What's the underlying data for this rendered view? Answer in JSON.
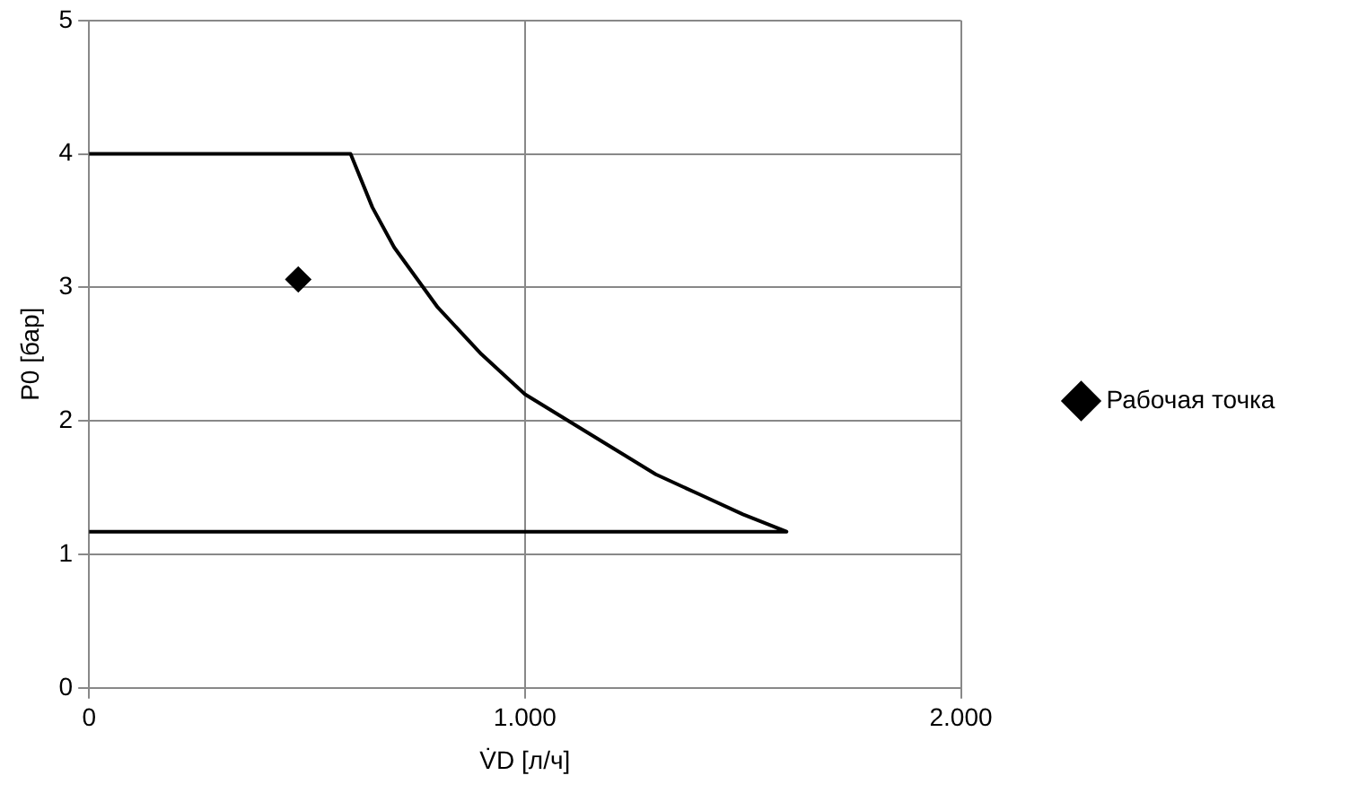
{
  "chart_data": {
    "type": "line",
    "xlabel": "V̇D [л/ч]",
    "ylabel": "P0 [бар]",
    "xlim": [
      0,
      2000
    ],
    "xticks": [
      0,
      {
        "value": 1000,
        "label": "1.000"
      },
      {
        "value": 2000,
        "label": "2.000"
      }
    ],
    "ylim": [
      0,
      5
    ],
    "yticks": [
      0,
      1,
      2,
      3,
      4,
      5
    ],
    "grid": true,
    "legend": "right",
    "series": [
      {
        "color": "#000000",
        "marker": "none",
        "x": [
          0,
          600,
          650,
          700,
          800,
          900,
          1000,
          1100,
          1200,
          1300,
          1400,
          1500,
          1600,
          0
        ],
        "values": [
          4,
          4,
          3.6,
          3.3,
          2.85,
          2.5,
          2.2,
          2,
          1.8,
          1.6,
          1.45,
          1.3,
          1.17,
          1.17
        ]
      },
      {
        "type": "scatter",
        "name": "Рабочая точка",
        "color": "#000000",
        "marker": "diamond",
        "x": [
          480
        ],
        "values": [
          3.06
        ]
      }
    ]
  }
}
